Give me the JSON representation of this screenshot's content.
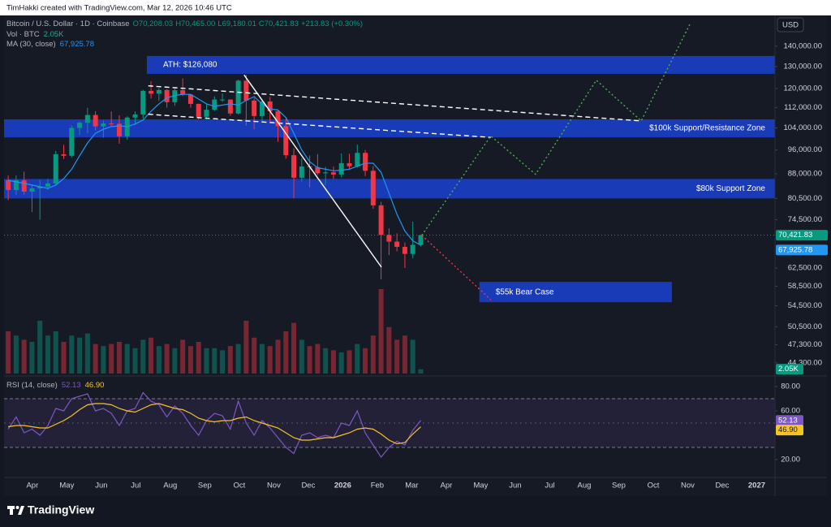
{
  "header": "TimHakki created with TradingView.com, Mar 12, 2026 10:46 UTC",
  "footer": "TradingView",
  "chart_data": [
    {
      "type": "candlestick",
      "title": "Bitcoin / U.S. Dollar · 1D · Coinbase",
      "legend_ohlc": [
        "O70,208.03",
        "H70,465.00",
        "L69,180.01",
        "C70,421.83",
        "+213.83 (+0.30%)"
      ],
      "currency": "USD",
      "log_scale": true,
      "grid": false,
      "up_color": "#089981",
      "down_color": "#f23645",
      "xlim": [
        -0.82,
        21.53
      ],
      "xticks": [
        {
          "value": 0,
          "label": "Apr"
        },
        {
          "value": 1,
          "label": "May"
        },
        {
          "value": 2,
          "label": "Jun"
        },
        {
          "value": 3,
          "label": "Jul"
        },
        {
          "value": 4,
          "label": "Aug"
        },
        {
          "value": 5,
          "label": "Sep"
        },
        {
          "value": 6,
          "label": "Oct"
        },
        {
          "value": 7,
          "label": "Nov"
        },
        {
          "value": 8,
          "label": "Dec"
        },
        {
          "value": 9,
          "label": "2026"
        },
        {
          "value": 10,
          "label": "Feb"
        },
        {
          "value": 11,
          "label": "Mar"
        },
        {
          "value": 12,
          "label": "Apr"
        },
        {
          "value": 13,
          "label": "May"
        },
        {
          "value": 14,
          "label": "Jun"
        },
        {
          "value": 15,
          "label": "Jul"
        },
        {
          "value": 16,
          "label": "Aug"
        },
        {
          "value": 17,
          "label": "Sep"
        },
        {
          "value": 18,
          "label": "Oct"
        },
        {
          "value": 19,
          "label": "Nov"
        },
        {
          "value": 20,
          "label": "Dec"
        },
        {
          "value": 21,
          "label": "2027"
        }
      ],
      "ylim": [
        42600,
        157000
      ],
      "yticks": [
        {
          "value": 140000,
          "label": "140,000.00"
        },
        {
          "value": 130000,
          "label": "130,000.00"
        },
        {
          "value": 120000,
          "label": "120,000.00"
        },
        {
          "value": 112000,
          "label": "112,000.00"
        },
        {
          "value": 104000,
          "label": "104,000.00"
        },
        {
          "value": 96000,
          "label": "96,000.00"
        },
        {
          "value": 88000,
          "label": "88,000.00"
        },
        {
          "value": 80500,
          "label": "80,500.00"
        },
        {
          "value": 74500,
          "label": "74,500.00"
        },
        {
          "value": 62500,
          "label": "62,500.00"
        },
        {
          "value": 58500,
          "label": "58,500.00"
        },
        {
          "value": 54500,
          "label": "54,500.00"
        },
        {
          "value": 50500,
          "label": "50,500.00"
        },
        {
          "value": 47300,
          "label": "47,300.00"
        },
        {
          "value": 44300,
          "label": "44,300.00"
        }
      ],
      "x": [
        -0.7,
        -0.47,
        -0.24,
        -0.01,
        0.22,
        0.45,
        0.68,
        0.91,
        1.14,
        1.37,
        1.6,
        1.83,
        2.06,
        2.29,
        2.52,
        2.75,
        2.98,
        3.21,
        3.44,
        3.67,
        3.9,
        4.13,
        4.36,
        4.59,
        4.82,
        5.05,
        5.28,
        5.51,
        5.74,
        5.97,
        6.2,
        6.43,
        6.66,
        6.89,
        7.12,
        7.35,
        7.58,
        7.81,
        8.04,
        8.27,
        8.5,
        8.73,
        8.96,
        9.19,
        9.42,
        9.65,
        9.88,
        10.11,
        10.34,
        10.57,
        10.8,
        11.03,
        11.26
      ],
      "open": [
        86000,
        83000,
        86000,
        82500,
        83500,
        84000,
        85000,
        94500,
        94000,
        104000,
        106000,
        109000,
        104600,
        105700,
        105600,
        100900,
        108000,
        109200,
        119000,
        117800,
        119400,
        114200,
        119300,
        117400,
        113500,
        108300,
        111100,
        115300,
        115300,
        109600,
        123500,
        114900,
        108600,
        114500,
        110500,
        104700,
        94200,
        86800,
        90400,
        90200,
        88200,
        88500,
        87800,
        91500,
        90500,
        95000,
        89000,
        78500,
        70500,
        68800,
        67500,
        65800,
        68000
      ],
      "high": [
        87500,
        87500,
        88700,
        84500,
        86100,
        86400,
        95700,
        97800,
        104900,
        106400,
        111900,
        110500,
        106800,
        110400,
        108900,
        108500,
        110500,
        119500,
        123200,
        120200,
        119800,
        120000,
        124500,
        117600,
        113600,
        113400,
        116700,
        117900,
        115400,
        124000,
        126080,
        115900,
        114900,
        116400,
        111200,
        107500,
        96600,
        93100,
        94100,
        94600,
        90300,
        90400,
        94800,
        94700,
        97900,
        96000,
        90500,
        79500,
        72200,
        70900,
        68600,
        74000,
        70500
      ],
      "low": [
        80000,
        81500,
        81600,
        76600,
        74500,
        83000,
        84600,
        92900,
        93400,
        101400,
        102000,
        103100,
        100400,
        104600,
        98200,
        99600,
        105100,
        107500,
        115700,
        114700,
        112000,
        112700,
        116800,
        111900,
        107300,
        107300,
        110600,
        114400,
        108700,
        109200,
        104800,
        103500,
        106700,
        106300,
        98900,
        93000,
        80600,
        85600,
        83800,
        87600,
        84500,
        86400,
        86900,
        89400,
        90000,
        87300,
        77500,
        60000,
        65500,
        66400,
        62500,
        64800,
        67600
      ],
      "close": [
        83000,
        86000,
        82500,
        83500,
        84000,
        85000,
        94500,
        94000,
        104000,
        106000,
        109000,
        104600,
        105700,
        105600,
        100900,
        108000,
        109200,
        119000,
        117800,
        119400,
        114200,
        119300,
        117400,
        113500,
        108300,
        111100,
        115300,
        115300,
        109600,
        123500,
        114900,
        108600,
        114500,
        110500,
        104700,
        94200,
        86800,
        90400,
        90200,
        88200,
        88500,
        87800,
        91500,
        90500,
        95000,
        89000,
        78500,
        70500,
        68800,
        67500,
        65800,
        68000,
        70421.83
      ],
      "close_label": "70,421.83",
      "ma": {
        "name": "MA (30, close)",
        "color": "#2196f3",
        "value_label": "67,925.78",
        "values": [
          86000,
          85500,
          85000,
          84500,
          84000,
          83500,
          84500,
          86500,
          89500,
          94000,
          98500,
          102000,
          103500,
          104500,
          104800,
          104500,
          105500,
          107000,
          110500,
          113500,
          116000,
          117000,
          117500,
          117500,
          115500,
          113500,
          112500,
          113000,
          113500,
          113000,
          115000,
          116500,
          113500,
          111500,
          111000,
          108000,
          102000,
          96000,
          92000,
          90000,
          89500,
          89000,
          89200,
          89500,
          90500,
          91500,
          91500,
          88500,
          82000,
          76000,
          71500,
          69000,
          67925.78
        ]
      },
      "volume": {
        "name": "Vol · BTC",
        "value_label": "2.05K",
        "ylim": [
          0,
          100
        ],
        "values": [
          20,
          18,
          16,
          15,
          25,
          18,
          20,
          15,
          18,
          17,
          19,
          14,
          13,
          14,
          15,
          14,
          12,
          16,
          17,
          13,
          14,
          12,
          16,
          13,
          15,
          12,
          12,
          11,
          13,
          14,
          25,
          17,
          14,
          13,
          16,
          20,
          24,
          16,
          13,
          14,
          12,
          11,
          10,
          11,
          14,
          12,
          18,
          40,
          22,
          16,
          18,
          16,
          2.05
        ]
      },
      "zones": [
        {
          "label": "ATH: $126,080",
          "low": 126600,
          "high": 135100,
          "x": [
            3.32,
            21.53
          ],
          "color": "#1a3fc9",
          "label_anchor": "left"
        },
        {
          "label": "$100k Support/Resistance Zone",
          "low": 100500,
          "high": 107300,
          "x": [
            -0.82,
            21.53
          ],
          "color": "#1a3fc9",
          "label_anchor": "right"
        },
        {
          "label": "$80k Support Zone",
          "low": 80500,
          "high": 86400,
          "x": [
            -0.82,
            21.53
          ],
          "color": "#1a3fc9",
          "label_anchor": "right"
        },
        {
          "label": "$55k Bear Case",
          "low": 55200,
          "high": 59440,
          "x": [
            12.96,
            18.54
          ],
          "color": "#1a3fc9",
          "label_anchor": "left"
        }
      ],
      "trendlines": [
        {
          "style": "solid",
          "color": "#ffffff",
          "x": [
            6.14,
            10.12
          ],
          "y": [
            126100,
            62700
          ]
        },
        {
          "style": "dashed",
          "color": "#ffffff",
          "x": [
            3.36,
            17.65
          ],
          "y": [
            121200,
            106700
          ]
        },
        {
          "style": "dashed",
          "color": "#ffffff",
          "x": [
            3.36,
            13.29
          ],
          "y": [
            109300,
            100500
          ]
        },
        {
          "style": "dotted",
          "color": "#4caf50",
          "x": [
            11.29,
            13.29,
            14.59,
            16.35,
            17.65,
            19.06
          ],
          "y": [
            70400,
            101000,
            87900,
            123700,
            106700,
            151500
          ]
        },
        {
          "style": "dotted",
          "color": "#f23645",
          "x": [
            11.29,
            13.29
          ],
          "y": [
            70400,
            55700
          ]
        }
      ]
    },
    {
      "type": "line",
      "title": "RSI (14, close)",
      "ylim": [
        7.3,
        86
      ],
      "yticks": [
        {
          "value": 80,
          "label": "80.00"
        },
        {
          "value": 60,
          "label": "60.00"
        },
        {
          "value": 20,
          "label": "20.00"
        }
      ],
      "band": [
        30,
        70
      ],
      "midline": 50,
      "series": [
        {
          "color": "#7e57c2",
          "value_label": "52.13",
          "values": [
            45,
            55,
            42,
            45,
            40,
            48,
            62,
            60,
            70,
            72,
            74,
            60,
            62,
            58,
            48,
            60,
            62,
            75,
            68,
            65,
            55,
            64,
            58,
            48,
            40,
            52,
            58,
            56,
            45,
            68,
            50,
            40,
            52,
            46,
            38,
            30,
            25,
            40,
            42,
            38,
            40,
            38,
            50,
            48,
            60,
            42,
            32,
            22,
            30,
            35,
            32,
            44,
            52.13
          ]
        },
        {
          "color": "#f7c325",
          "value_label": "46.90",
          "values": [
            47,
            48,
            48,
            47,
            46,
            46,
            49,
            52,
            56,
            61,
            65,
            66,
            66,
            65,
            62,
            60,
            59,
            62,
            65,
            66,
            64,
            62,
            61,
            58,
            54,
            52,
            51,
            52,
            52,
            54,
            55,
            52,
            50,
            48,
            46,
            42,
            38,
            36,
            36,
            37,
            38,
            38,
            40,
            42,
            45,
            46,
            45,
            41,
            36,
            33,
            34,
            41,
            46.9
          ]
        }
      ]
    }
  ]
}
